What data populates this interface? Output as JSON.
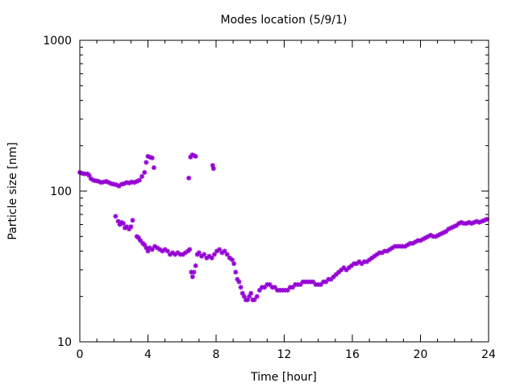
{
  "chart_data": {
    "type": "scatter",
    "title": "Modes location (5/9/1)",
    "xlabel": "Time [hour]",
    "ylabel": "Particle size [nm]",
    "xlim": [
      0,
      24
    ],
    "ylim": [
      10,
      1000
    ],
    "yscale": "log",
    "grid": false,
    "legend": "none",
    "marker_color": "#9400d3",
    "xticks": [
      "0",
      "4",
      "8",
      "12",
      "16",
      "20",
      "24"
    ],
    "yticks": [
      "10",
      "100",
      "1000"
    ],
    "series": [
      {
        "points": [
          [
            0.0,
            133
          ],
          [
            0.15,
            131
          ],
          [
            0.3,
            130
          ],
          [
            0.45,
            130
          ],
          [
            0.55,
            127
          ],
          [
            0.65,
            121
          ],
          [
            0.8,
            118
          ],
          [
            0.95,
            117
          ],
          [
            1.1,
            116
          ],
          [
            1.25,
            114
          ],
          [
            1.4,
            115
          ],
          [
            1.55,
            116
          ],
          [
            1.7,
            114
          ],
          [
            1.85,
            112
          ],
          [
            2.0,
            111
          ],
          [
            2.15,
            110
          ],
          [
            2.3,
            108
          ],
          [
            2.45,
            111
          ],
          [
            2.6,
            112
          ],
          [
            2.75,
            114
          ],
          [
            2.9,
            113
          ],
          [
            3.05,
            115
          ],
          [
            3.2,
            114
          ],
          [
            3.35,
            116
          ],
          [
            3.5,
            118
          ],
          [
            3.65,
            125
          ],
          [
            3.8,
            133
          ],
          [
            3.9,
            155
          ],
          [
            4.0,
            170
          ],
          [
            4.1,
            168
          ],
          [
            4.25,
            166
          ],
          [
            4.35,
            143
          ],
          [
            6.4,
            122
          ],
          [
            6.5,
            168
          ],
          [
            6.6,
            174
          ],
          [
            6.7,
            172
          ],
          [
            6.8,
            170
          ],
          [
            7.8,
            148
          ],
          [
            7.85,
            141
          ],
          [
            2.1,
            68
          ],
          [
            2.25,
            63
          ],
          [
            2.35,
            60
          ],
          [
            2.45,
            62
          ],
          [
            2.55,
            61
          ],
          [
            2.65,
            57
          ],
          [
            2.75,
            58
          ],
          [
            2.9,
            56
          ],
          [
            3.0,
            58
          ],
          [
            3.1,
            64
          ],
          [
            3.35,
            50
          ],
          [
            3.45,
            49
          ],
          [
            3.55,
            47
          ],
          [
            3.7,
            45
          ],
          [
            3.8,
            44
          ],
          [
            3.9,
            42
          ],
          [
            4.0,
            40
          ],
          [
            4.1,
            42
          ],
          [
            4.25,
            41
          ],
          [
            4.4,
            43
          ],
          [
            4.55,
            42
          ],
          [
            4.7,
            41
          ],
          [
            4.85,
            40
          ],
          [
            5.0,
            41
          ],
          [
            5.15,
            40
          ],
          [
            5.3,
            38
          ],
          [
            5.45,
            39
          ],
          [
            5.6,
            38
          ],
          [
            5.75,
            39
          ],
          [
            5.9,
            38
          ],
          [
            6.05,
            38
          ],
          [
            6.2,
            39
          ],
          [
            6.35,
            40
          ],
          [
            6.45,
            41
          ],
          [
            6.55,
            29
          ],
          [
            6.62,
            27
          ],
          [
            6.7,
            29
          ],
          [
            6.8,
            32
          ],
          [
            6.9,
            38
          ],
          [
            7.0,
            39
          ],
          [
            7.15,
            37
          ],
          [
            7.3,
            38
          ],
          [
            7.45,
            36
          ],
          [
            7.6,
            37
          ],
          [
            7.75,
            36
          ],
          [
            7.9,
            38
          ],
          [
            8.05,
            40
          ],
          [
            8.2,
            41
          ],
          [
            8.35,
            39
          ],
          [
            8.5,
            40
          ],
          [
            8.65,
            38
          ],
          [
            8.8,
            36
          ],
          [
            8.95,
            35
          ],
          [
            9.05,
            33
          ],
          [
            9.15,
            29
          ],
          [
            9.25,
            26
          ],
          [
            9.35,
            25
          ],
          [
            9.45,
            23
          ],
          [
            9.55,
            21
          ],
          [
            9.65,
            20
          ],
          [
            9.75,
            19
          ],
          [
            9.85,
            19
          ],
          [
            9.95,
            20
          ],
          [
            10.05,
            21
          ],
          [
            10.15,
            19
          ],
          [
            10.25,
            19
          ],
          [
            10.4,
            20
          ],
          [
            10.55,
            22
          ],
          [
            10.7,
            23
          ],
          [
            10.85,
            23
          ],
          [
            11.0,
            24
          ],
          [
            11.15,
            24
          ],
          [
            11.3,
            23
          ],
          [
            11.45,
            23
          ],
          [
            11.6,
            22
          ],
          [
            11.75,
            22
          ],
          [
            11.9,
            22
          ],
          [
            12.05,
            22
          ],
          [
            12.2,
            22
          ],
          [
            12.35,
            23
          ],
          [
            12.5,
            23
          ],
          [
            12.65,
            24
          ],
          [
            12.8,
            24
          ],
          [
            12.95,
            24
          ],
          [
            13.1,
            25
          ],
          [
            13.25,
            25
          ],
          [
            13.4,
            25
          ],
          [
            13.55,
            25
          ],
          [
            13.7,
            25
          ],
          [
            13.85,
            24
          ],
          [
            14.0,
            24
          ],
          [
            14.15,
            24
          ],
          [
            14.3,
            25
          ],
          [
            14.45,
            25
          ],
          [
            14.6,
            26
          ],
          [
            14.75,
            26
          ],
          [
            14.9,
            27
          ],
          [
            15.05,
            28
          ],
          [
            15.2,
            29
          ],
          [
            15.35,
            30
          ],
          [
            15.5,
            31
          ],
          [
            15.65,
            30
          ],
          [
            15.8,
            31
          ],
          [
            15.95,
            32
          ],
          [
            16.1,
            33
          ],
          [
            16.25,
            33
          ],
          [
            16.4,
            34
          ],
          [
            16.55,
            33
          ],
          [
            16.7,
            34
          ],
          [
            16.85,
            34
          ],
          [
            17.0,
            35
          ],
          [
            17.15,
            36
          ],
          [
            17.3,
            37
          ],
          [
            17.45,
            38
          ],
          [
            17.6,
            39
          ],
          [
            17.75,
            39
          ],
          [
            17.9,
            40
          ],
          [
            18.05,
            40
          ],
          [
            18.2,
            41
          ],
          [
            18.35,
            42
          ],
          [
            18.5,
            43
          ],
          [
            18.65,
            43
          ],
          [
            18.8,
            43
          ],
          [
            18.95,
            43
          ],
          [
            19.1,
            43
          ],
          [
            19.25,
            44
          ],
          [
            19.4,
            45
          ],
          [
            19.55,
            45
          ],
          [
            19.7,
            46
          ],
          [
            19.85,
            47
          ],
          [
            20.0,
            47
          ],
          [
            20.15,
            48
          ],
          [
            20.3,
            49
          ],
          [
            20.45,
            50
          ],
          [
            20.6,
            51
          ],
          [
            20.75,
            50
          ],
          [
            20.9,
            50
          ],
          [
            21.05,
            51
          ],
          [
            21.2,
            52
          ],
          [
            21.35,
            53
          ],
          [
            21.5,
            54
          ],
          [
            21.65,
            56
          ],
          [
            21.8,
            57
          ],
          [
            21.95,
            58
          ],
          [
            22.1,
            59
          ],
          [
            22.25,
            61
          ],
          [
            22.4,
            62
          ],
          [
            22.55,
            61
          ],
          [
            22.7,
            61
          ],
          [
            22.85,
            62
          ],
          [
            23.0,
            61
          ],
          [
            23.15,
            62
          ],
          [
            23.3,
            63
          ],
          [
            23.45,
            62
          ],
          [
            23.6,
            63
          ],
          [
            23.75,
            64
          ],
          [
            23.9,
            65
          ]
        ]
      }
    ]
  }
}
